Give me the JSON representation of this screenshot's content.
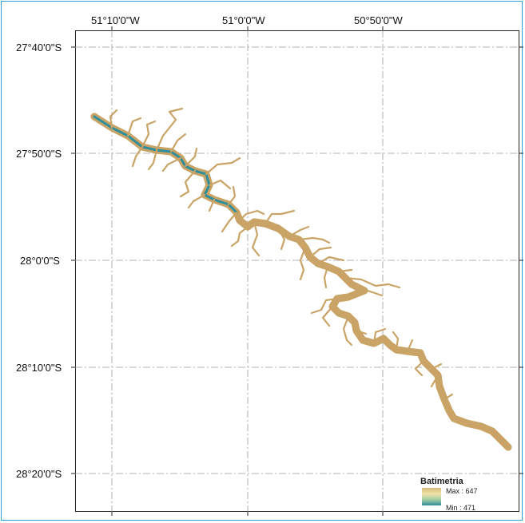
{
  "map": {
    "graticule": {
      "longitude_labels": [
        "51°10'0\"W",
        "51°0'0\"W",
        "50°50'0\"W"
      ],
      "latitude_labels": [
        "27°40'0\"S",
        "27°50'0\"S",
        "28°0'0\"S",
        "28°10'0\"S",
        "28°20'0\"S"
      ]
    },
    "legend": {
      "title": "Batimetria",
      "max_label": "Max : 647",
      "min_label": "Min : 471",
      "ramp_colors": [
        "#d9b97a",
        "#f0e3a8",
        "#a8cfa6",
        "#2f8e9b"
      ]
    },
    "reservoir_colors": {
      "shore": "#c9a466",
      "shallow": "#efe2a9",
      "deep": "#2f8e9b",
      "outline": "#9a7440"
    }
  }
}
